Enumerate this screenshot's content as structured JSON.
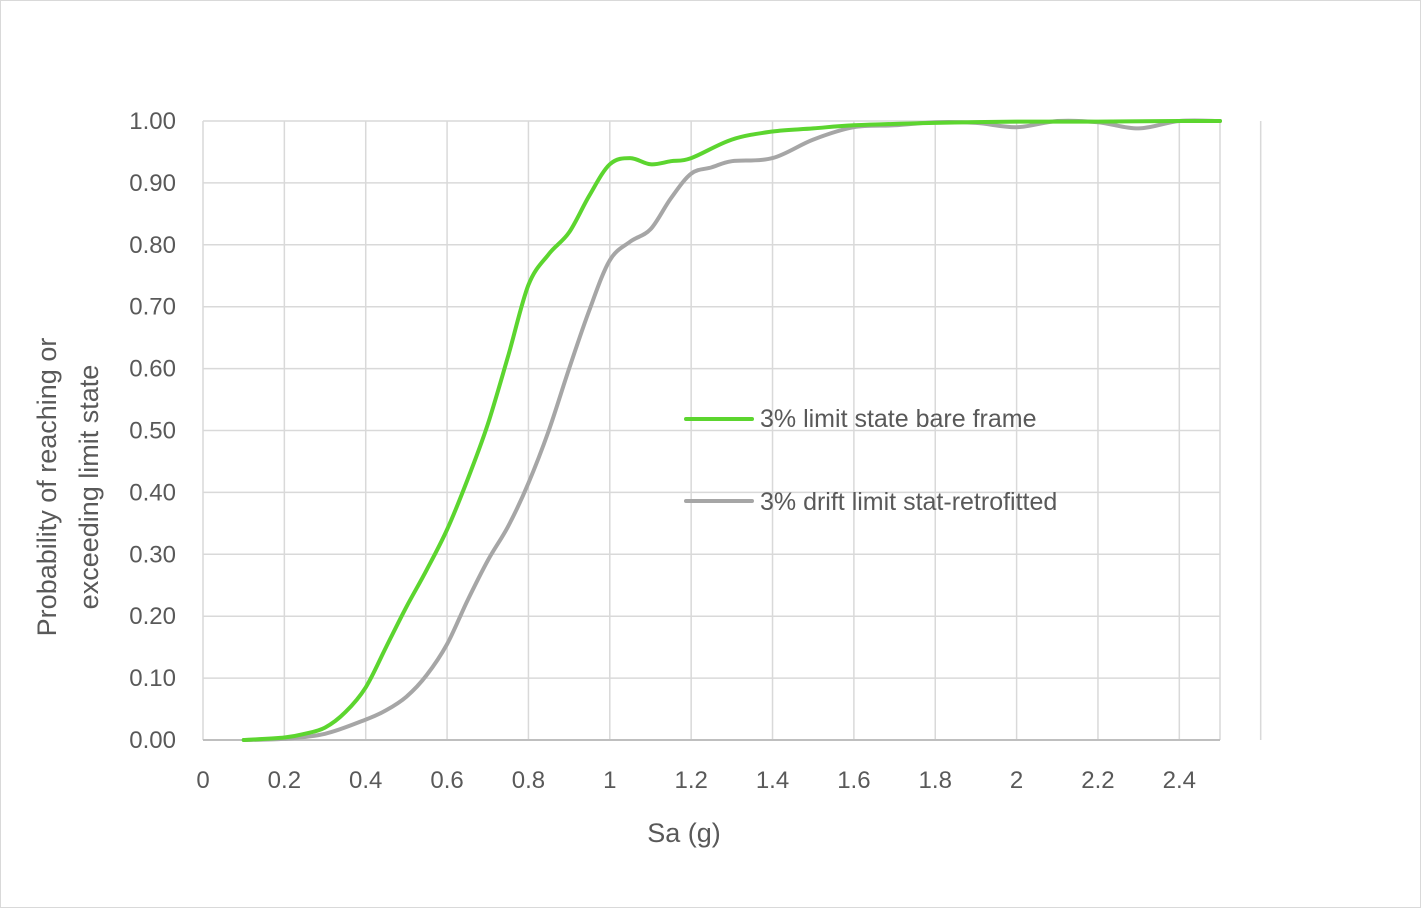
{
  "chart_data": {
    "type": "line",
    "title": "",
    "xlabel": "Sa (g)",
    "ylabel_lines": [
      "Probability of reaching or",
      "exceeding limit state"
    ],
    "xlim": [
      0,
      2.5
    ],
    "ylim": [
      0,
      1
    ],
    "x_ticks": [
      "0",
      "0.2",
      "0.4",
      "0.6",
      "0.8",
      "1",
      "1.2",
      "1.4",
      "1.6",
      "1.8",
      "2",
      "2.2",
      "2.4"
    ],
    "y_ticks": [
      "0.00",
      "0.10",
      "0.20",
      "0.30",
      "0.40",
      "0.50",
      "0.60",
      "0.70",
      "0.80",
      "0.90",
      "1.00"
    ],
    "grid": true,
    "legend_position": "right-middle",
    "series": [
      {
        "name": "3% limit state bare frame",
        "color": "#5cd52f",
        "x": [
          0.1,
          0.2,
          0.25,
          0.3,
          0.35,
          0.4,
          0.45,
          0.5,
          0.55,
          0.6,
          0.65,
          0.7,
          0.75,
          0.8,
          0.85,
          0.9,
          0.95,
          1.0,
          1.05,
          1.1,
          1.15,
          1.2,
          1.3,
          1.4,
          1.5,
          1.6,
          1.8,
          2.0,
          2.2,
          2.4,
          2.5
        ],
        "y": [
          0.0,
          0.004,
          0.01,
          0.02,
          0.045,
          0.085,
          0.15,
          0.215,
          0.275,
          0.34,
          0.42,
          0.51,
          0.62,
          0.735,
          0.785,
          0.82,
          0.88,
          0.93,
          0.94,
          0.93,
          0.935,
          0.94,
          0.97,
          0.983,
          0.988,
          0.993,
          0.997,
          0.999,
          0.999,
          1.0,
          1.0
        ]
      },
      {
        "name": "3% drift limit stat-retrofitted",
        "color": "#a6a6a6",
        "x": [
          0.1,
          0.2,
          0.3,
          0.4,
          0.45,
          0.5,
          0.55,
          0.6,
          0.65,
          0.7,
          0.75,
          0.8,
          0.85,
          0.9,
          0.95,
          1.0,
          1.05,
          1.1,
          1.15,
          1.2,
          1.25,
          1.3,
          1.4,
          1.5,
          1.6,
          1.7,
          1.8,
          1.9,
          2.0,
          2.1,
          2.2,
          2.3,
          2.4,
          2.5
        ],
        "y": [
          0.0,
          0.002,
          0.01,
          0.033,
          0.048,
          0.07,
          0.105,
          0.155,
          0.225,
          0.29,
          0.345,
          0.415,
          0.5,
          0.6,
          0.695,
          0.775,
          0.805,
          0.825,
          0.875,
          0.915,
          0.925,
          0.935,
          0.94,
          0.97,
          0.99,
          0.993,
          0.998,
          0.997,
          0.99,
          1.0,
          0.998,
          0.988,
          1.0,
          1.0
        ]
      }
    ]
  }
}
